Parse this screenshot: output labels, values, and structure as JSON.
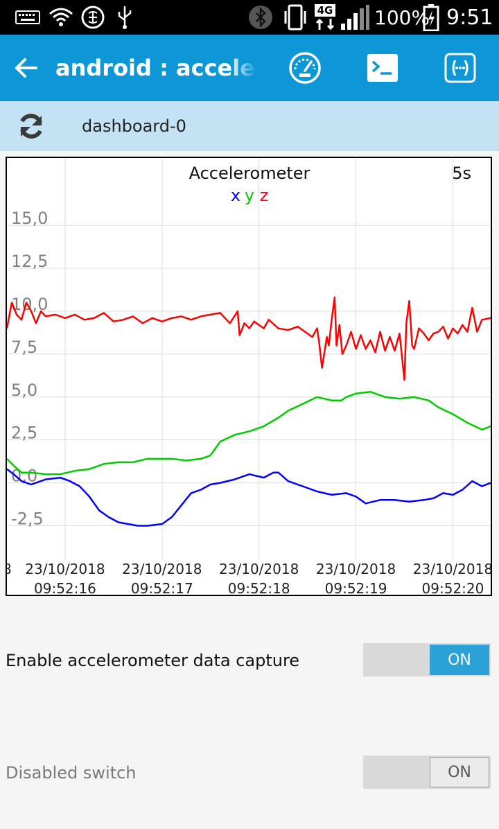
{
  "status_bar": {
    "battery": "100%",
    "time": "9:51",
    "network": "4G"
  },
  "app_bar": {
    "title": "android : accelerometer"
  },
  "dashboard": {
    "name": "dashboard-0"
  },
  "chart_data": {
    "type": "line",
    "title": "Accelerometer",
    "window": "5s",
    "legend": [
      {
        "name": "x",
        "color": "#0000ff"
      },
      {
        "name": "y",
        "color": "#00cc00"
      },
      {
        "name": "z",
        "color": "#ff0000"
      }
    ],
    "ylim": [
      -4.5,
      16.5
    ],
    "y_ticks": [
      15.0,
      12.5,
      10.0,
      7.5,
      5.0,
      2.5,
      0.0,
      -2.5
    ],
    "y_tick_labels": [
      "15,0",
      "12,5",
      "10,0",
      "7,5",
      "5,0",
      "2,5",
      "0,0",
      "-2,5"
    ],
    "xlim": [
      15.4,
      20.39
    ],
    "x_ticks": [
      {
        "t": 16,
        "date": "23/10/2018",
        "time": "09:52:16"
      },
      {
        "t": 17,
        "date": "23/10/2018",
        "time": "09:52:17"
      },
      {
        "t": 18,
        "date": "23/10/2018",
        "time": "09:52:18"
      },
      {
        "t": 19,
        "date": "23/10/2018",
        "time": "09:52:19"
      },
      {
        "t": 20,
        "date": "23/10/2018",
        "time": "09:52:20"
      }
    ],
    "grid": true,
    "series": [
      {
        "name": "x",
        "color": "#0000ff",
        "x": [
          15.4,
          15.47,
          15.55,
          15.65,
          15.8,
          15.95,
          16.05,
          16.15,
          16.25,
          16.35,
          16.45,
          16.55,
          16.65,
          16.75,
          16.85,
          17.0,
          17.1,
          17.2,
          17.3,
          17.4,
          17.5,
          17.6,
          17.75,
          17.9,
          18.05,
          18.15,
          18.2,
          18.3,
          18.45,
          18.6,
          18.75,
          18.9,
          19.0,
          19.1,
          19.25,
          19.4,
          19.55,
          19.7,
          19.8,
          19.9,
          20.0,
          20.1,
          20.2,
          20.3,
          20.39
        ],
        "y": [
          0.8,
          0.5,
          0.1,
          -0.1,
          0.2,
          0.3,
          0.1,
          -0.2,
          -0.8,
          -1.6,
          -2.0,
          -2.3,
          -2.4,
          -2.5,
          -2.5,
          -2.4,
          -2.0,
          -1.3,
          -0.6,
          -0.4,
          -0.1,
          0.0,
          0.2,
          0.5,
          0.3,
          0.6,
          0.6,
          0.1,
          -0.2,
          -0.5,
          -0.7,
          -0.6,
          -0.8,
          -1.2,
          -1.0,
          -1.0,
          -1.1,
          -1.0,
          -0.9,
          -0.6,
          -0.7,
          -0.4,
          0.1,
          -0.2,
          0.0
        ]
      },
      {
        "name": "y",
        "color": "#00cc00",
        "x": [
          15.4,
          15.47,
          15.55,
          15.65,
          15.8,
          15.95,
          16.1,
          16.25,
          16.4,
          16.55,
          16.7,
          16.85,
          17.0,
          17.1,
          17.25,
          17.4,
          17.5,
          17.6,
          17.75,
          17.9,
          18.05,
          18.2,
          18.3,
          18.45,
          18.6,
          18.75,
          18.85,
          18.9,
          19.0,
          19.15,
          19.3,
          19.45,
          19.6,
          19.75,
          19.85,
          20.0,
          20.15,
          20.3,
          20.39
        ],
        "y": [
          1.4,
          1.0,
          0.6,
          0.6,
          0.5,
          0.5,
          0.7,
          0.8,
          1.1,
          1.2,
          1.2,
          1.4,
          1.4,
          1.4,
          1.3,
          1.4,
          1.6,
          2.4,
          2.8,
          3.0,
          3.3,
          3.8,
          4.2,
          4.6,
          5.0,
          4.8,
          4.8,
          5.0,
          5.2,
          5.3,
          5.0,
          4.9,
          5.0,
          4.8,
          4.4,
          4.0,
          3.5,
          3.1,
          3.3
        ]
      },
      {
        "name": "z",
        "color": "#ff0000",
        "x": [
          15.4,
          15.45,
          15.5,
          15.55,
          15.6,
          15.65,
          15.7,
          15.75,
          15.8,
          15.9,
          16.0,
          16.1,
          16.2,
          16.3,
          16.4,
          16.5,
          16.6,
          16.7,
          16.8,
          16.9,
          17.0,
          17.1,
          17.2,
          17.3,
          17.4,
          17.5,
          17.6,
          17.7,
          17.78,
          17.8,
          17.85,
          17.9,
          17.95,
          18.0,
          18.05,
          18.1,
          18.2,
          18.3,
          18.4,
          18.5,
          18.55,
          18.6,
          18.62,
          18.65,
          18.7,
          18.72,
          18.75,
          18.78,
          18.8,
          18.83,
          18.86,
          18.9,
          18.95,
          19.0,
          19.05,
          19.1,
          19.15,
          19.2,
          19.25,
          19.3,
          19.35,
          19.4,
          19.45,
          19.5,
          19.52,
          19.55,
          19.58,
          19.6,
          19.65,
          19.7,
          19.75,
          19.8,
          19.85,
          19.9,
          19.95,
          20.0,
          20.05,
          20.1,
          20.15,
          20.2,
          20.25,
          20.3,
          20.39
        ],
        "y": [
          9.0,
          10.5,
          9.8,
          9.5,
          10.5,
          10.0,
          9.3,
          10.0,
          9.7,
          9.8,
          9.6,
          9.8,
          9.5,
          9.6,
          9.9,
          9.4,
          9.5,
          9.7,
          9.3,
          9.6,
          9.4,
          9.6,
          9.7,
          9.5,
          9.7,
          9.8,
          9.9,
          9.3,
          10.0,
          8.6,
          9.3,
          9.0,
          9.4,
          9.2,
          9.0,
          9.5,
          9.0,
          8.9,
          9.1,
          8.7,
          8.5,
          9.0,
          8.2,
          6.7,
          8.5,
          8.0,
          9.5,
          10.8,
          8.0,
          9.2,
          7.5,
          8.0,
          8.8,
          7.8,
          8.6,
          7.8,
          8.3,
          7.6,
          8.8,
          7.7,
          8.5,
          7.7,
          8.7,
          6.0,
          9.3,
          10.6,
          8.0,
          7.8,
          9.0,
          8.7,
          8.3,
          8.7,
          8.8,
          9.1,
          8.4,
          9.0,
          8.7,
          9.2,
          8.8,
          10.2,
          8.8,
          9.5,
          9.6
        ]
      }
    ]
  },
  "controls": {
    "capture_label": "Enable accelerometer data capture",
    "capture_state": "ON",
    "disabled_label": "Disabled switch",
    "disabled_state": "ON"
  },
  "colors": {
    "app_bar": "#0e97d6",
    "sub_bar": "#c3e3f5",
    "switch_on": "#2aa2d6"
  }
}
